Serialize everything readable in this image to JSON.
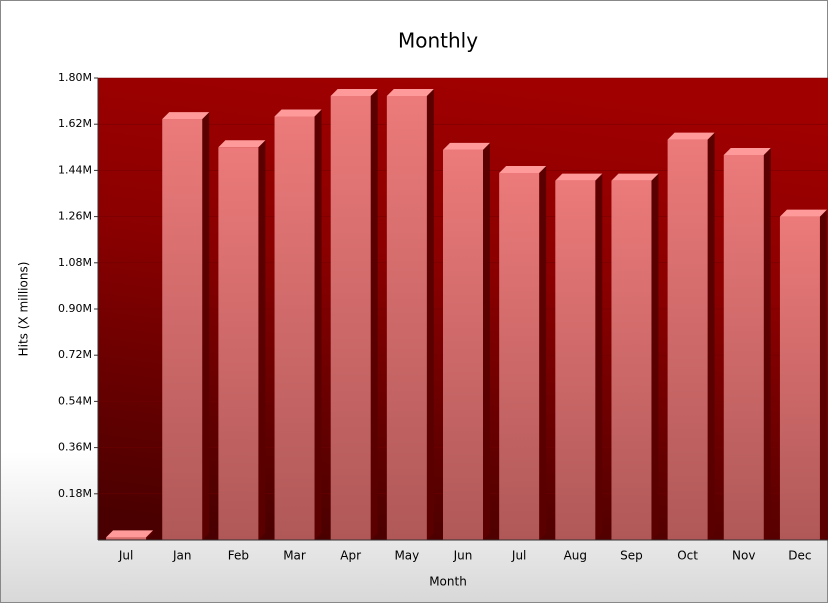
{
  "chart_data": {
    "type": "bar",
    "title": "Monthly",
    "x_label": "Month",
    "y_label": "Hits (X millions)",
    "categories": [
      "Jul",
      "Jan",
      "Feb",
      "Mar",
      "Apr",
      "May",
      "Jun",
      "Jul",
      "Aug",
      "Sep",
      "Oct",
      "Nov",
      "Dec"
    ],
    "values": [
      0.01,
      1.64,
      1.53,
      1.65,
      1.73,
      1.73,
      1.52,
      1.43,
      1.4,
      1.4,
      1.56,
      1.5,
      1.26
    ],
    "color": "#e87474",
    "ylim": [
      0,
      1.8
    ],
    "yticks": [
      {
        "value": 0.18,
        "label": "0.18M"
      },
      {
        "value": 0.36,
        "label": "0.36M"
      },
      {
        "value": 0.54,
        "label": "0.54M"
      },
      {
        "value": 0.72,
        "label": "0.72M"
      },
      {
        "value": 0.9,
        "label": "0.90M"
      },
      {
        "value": 1.08,
        "label": "1.08M"
      },
      {
        "value": 1.26,
        "label": "1.26M"
      },
      {
        "value": 1.44,
        "label": "1.44M"
      },
      {
        "value": 1.62,
        "label": "1.62M"
      },
      {
        "value": 1.8,
        "label": "1.80M"
      }
    ],
    "grid": true
  }
}
